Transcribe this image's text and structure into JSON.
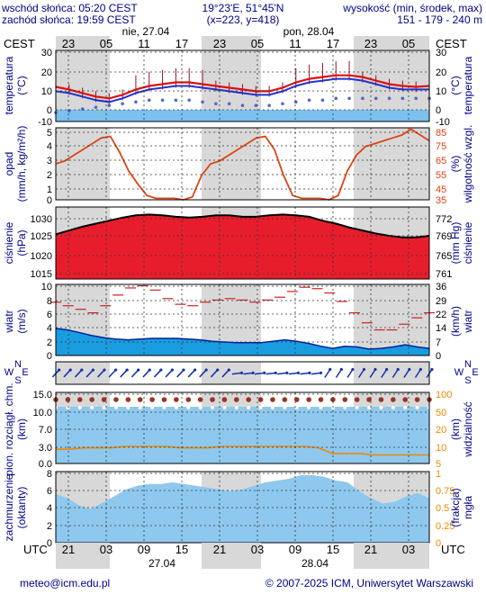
{
  "header": {
    "sunrise": "wschód słońca: 05:20 CEST",
    "sunset": "zachód słońca: 19:59 CEST",
    "coords": "19°23'E, 51°45'N",
    "grid": "(x=223, y=418)",
    "elev_title": "wysokość (min, środek, max)",
    "elev_values": "151 - 179 - 240 m"
  },
  "top_axis": {
    "tz_left": "CEST",
    "tz_right": "CEST",
    "hours": [
      "23",
      "05",
      "11",
      "17",
      "23",
      "05",
      "11",
      "17",
      "23",
      "05"
    ],
    "day1": "nie, 27.04",
    "day2": "pon, 28.04"
  },
  "bottom_axis": {
    "tz_left": "UTC",
    "tz_right": "UTC",
    "hours": [
      "21",
      "03",
      "09",
      "15",
      "21",
      "03",
      "09",
      "15",
      "21",
      "03"
    ],
    "date1": "27.04",
    "date2": "28.04"
  },
  "footer": {
    "email": "meteo@icm.edu.pl",
    "copyright": "© 2007-2025 ICM, Uniwersytet Warszawski"
  },
  "panels": {
    "temperature": {
      "label_left": "temperatura",
      "unit_left": "(°C)",
      "label_right": "temperatura",
      "unit_right": "(°C)"
    },
    "precip": {
      "label_left": "opad",
      "unit_left": "(mm/h, kg/m²/h)",
      "label_right": "wilgotność wzgl.",
      "unit_right": "(%)"
    },
    "pressure": {
      "label_left": "ciśnienie",
      "unit_left": "(hPa)",
      "label_right": "ciśnienie",
      "unit_right": "(mm Hg)"
    },
    "wind": {
      "label_left": "wiatr",
      "unit_left": "(m/s)",
      "label_right": "wiatr",
      "unit_right": "(km/h)"
    },
    "winddir": {
      "n": "N",
      "s": "S",
      "w": "W",
      "e": "E"
    },
    "visibility": {
      "label_left": "pion. rozciągł. chm.",
      "unit_left": "(km)",
      "label_right": "widzialność",
      "unit_right": "(km)"
    },
    "cloud": {
      "label_left": "zachmurzenie",
      "unit_left": "(oktanty)",
      "label_right": "mgła",
      "unit_right": "(frakcja)"
    }
  },
  "colors": {
    "temp_line": "#dd1111",
    "dew_line": "#2233cc",
    "cold_fill": "#7cc0ee",
    "precip_line": "#dd4411",
    "pressure_fill": "#e81d2c",
    "wind_fill": "#1a9ce0",
    "gust_line": "#cc2222",
    "vis_line": "#ee8800",
    "cloud_fill": "#8ec8ee",
    "night": "#d8d8d8"
  },
  "chart_data": [
    {
      "type": "line",
      "series": [
        {
          "name": "temperatura",
          "values": [
            9.5,
            8,
            6,
            4,
            3,
            5,
            8,
            10,
            11,
            12,
            12,
            11,
            10,
            9,
            8,
            7,
            7,
            9,
            12,
            14,
            15,
            16,
            16,
            15,
            13,
            11,
            10,
            9.5,
            10
          ]
        },
        {
          "name": "punkt rosy",
          "values": [
            7,
            6,
            4,
            2,
            1,
            3,
            6,
            8,
            9,
            10,
            10,
            9,
            8,
            7,
            6,
            5,
            5,
            7,
            10,
            12,
            13,
            14,
            14,
            13,
            11,
            9,
            8,
            8,
            8
          ]
        },
        {
          "name": "temperatura min",
          "values": [
            -5,
            -4,
            -3,
            -2,
            -1,
            0,
            1,
            2,
            2,
            2,
            2,
            1,
            0,
            0,
            -1,
            -1,
            -1,
            0,
            1,
            2,
            2,
            3,
            3,
            3,
            3,
            3,
            3,
            3,
            3
          ]
        }
      ],
      "yticks_left": [
        "30",
        "20",
        "10",
        "0",
        "-10"
      ],
      "yticks_right": [
        "30",
        "20",
        "10",
        "0",
        "-10"
      ],
      "ylim": [
        -10,
        30
      ]
    },
    {
      "type": "line",
      "series": [
        {
          "name": "wilgotność",
          "values": [
            60,
            62,
            66,
            70,
            74,
            78,
            79,
            68,
            55,
            46,
            38,
            36,
            36,
            36,
            35,
            37,
            52,
            60,
            62,
            66,
            70,
            74,
            78,
            79,
            70,
            52,
            38,
            36,
            36,
            36,
            35,
            38,
            55,
            66,
            72,
            74,
            76,
            78,
            80,
            84,
            80,
            76
          ]
        }
      ],
      "yticks_left": [
        "5",
        "4",
        "3",
        "2",
        "1",
        "0"
      ],
      "yticks_right": [
        "85",
        "75",
        "65",
        "55",
        "45",
        "35"
      ],
      "ylim_left": [
        0,
        5
      ],
      "ylim_right": [
        35,
        85
      ]
    },
    {
      "type": "area",
      "series": [
        {
          "name": "ciśnienie",
          "values": [
            1025.8,
            1026.8,
            1027.8,
            1028.6,
            1029.4,
            1030.2,
            1030.8,
            1031,
            1030.8,
            1030.4,
            1030.2,
            1030.4,
            1030.8,
            1030.8,
            1030.4,
            1030.4,
            1030.8,
            1031,
            1030.8,
            1030.4,
            1029.4,
            1028.6,
            1027.6,
            1026.8,
            1026,
            1025.4,
            1025,
            1025,
            1025.4
          ]
        }
      ],
      "yticks_left": [
        "1030",
        "1025",
        "1020",
        "1015"
      ],
      "yticks_right": [
        "772",
        "769",
        "765",
        "761"
      ],
      "ylim": [
        1014,
        1033
      ]
    },
    {
      "type": "area",
      "series": [
        {
          "name": "prędkość wiatru",
          "values": [
            3.8,
            3.6,
            3.2,
            2.8,
            2.5,
            2.3,
            2.2,
            2.3,
            2.4,
            2.4,
            2.4,
            2.3,
            2.2,
            2.0,
            1.9,
            1.8,
            1.8,
            1.8,
            2.0,
            2.2,
            2.0,
            1.7,
            1.3,
            1.0,
            1.3,
            1.2,
            0.9,
            1.0,
            1.2,
            1.5,
            1.2,
            1.0
          ]
        },
        {
          "name": "porywy",
          "values": [
            7.5,
            7,
            6.5,
            6,
            7,
            8.5,
            9.5,
            9.8,
            9.2,
            8,
            7.2,
            7,
            7.5,
            7.8,
            8,
            7.8,
            7.5,
            7.8,
            8.2,
            9,
            9.6,
            9.4,
            8.8,
            7.6,
            6,
            4.6,
            3.6,
            3.6,
            4.4,
            5.3,
            6
          ]
        }
      ],
      "yticks_left": [
        "10",
        "8",
        "6",
        "4",
        "2",
        "0"
      ],
      "yticks_right": [
        "36",
        "29",
        "22",
        "14",
        "7",
        "0"
      ],
      "ylim": [
        0,
        10
      ]
    },
    {
      "type": "scatter",
      "series": [
        {
          "name": "pion. rozciągłość chmur",
          "values": [
            8,
            8,
            8,
            8,
            8,
            8,
            8,
            8,
            8,
            8,
            8,
            8,
            8,
            8,
            8,
            8,
            8,
            8,
            8,
            8,
            8,
            8,
            8,
            8,
            8,
            8,
            8,
            8,
            8,
            8,
            8,
            8
          ]
        },
        {
          "name": "widzialność",
          "values": [
            20,
            20,
            22,
            22,
            22,
            24,
            24,
            24,
            24,
            22,
            22,
            22,
            24,
            24,
            24,
            24,
            24,
            24,
            24,
            22,
            14,
            14,
            14,
            12,
            12,
            12,
            12,
            12
          ]
        }
      ],
      "yticks_left": [
        "15.0",
        "10.0",
        "7.0",
        "3.0",
        "0.0"
      ],
      "yticks_right": [
        "100",
        "50",
        "20",
        "10",
        "5",
        "2",
        "0"
      ],
      "ylim": [
        0,
        15
      ]
    },
    {
      "type": "area",
      "series": [
        {
          "name": "zachmurzenie",
          "values": [
            5.5,
            5.0,
            4.2,
            3.8,
            4.5,
            5.2,
            6.0,
            6.4,
            6.6,
            6.6,
            6.8,
            6.6,
            6.4,
            6.2,
            6.0,
            5.8,
            6.0,
            6.4,
            6.8,
            7.0,
            7.2,
            7.6,
            7.6,
            7.4,
            7.0,
            6.8,
            5.8,
            5.0,
            4.4,
            4.6,
            5.2,
            5.6,
            5.0
          ]
        }
      ],
      "yticks_left": [
        "8",
        "6",
        "4",
        "2",
        "0"
      ],
      "yticks_right": [
        "1",
        "0.75",
        "0.5",
        "0.25",
        "0"
      ],
      "ylim": [
        0,
        8
      ]
    }
  ]
}
